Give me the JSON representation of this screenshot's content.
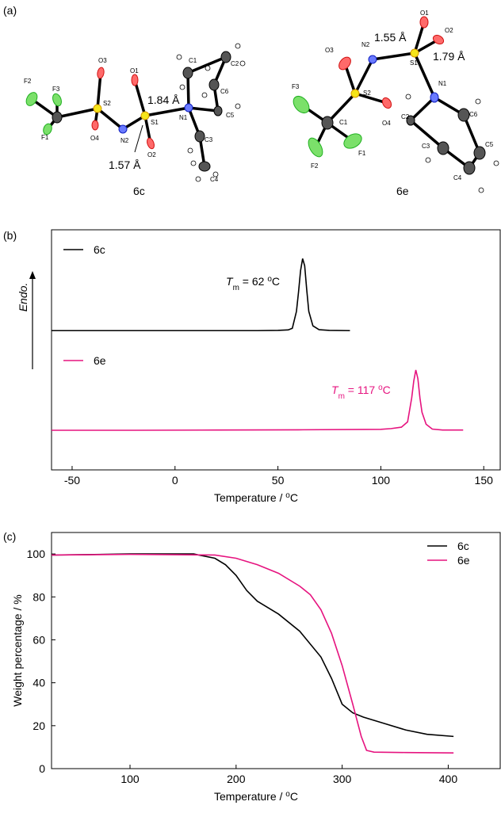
{
  "panel_labels": [
    "(a)",
    "(b)",
    "(c)"
  ],
  "structures": [
    {
      "name": "6c",
      "atoms": [
        "F2",
        "F3",
        "F1",
        "S2",
        "O3",
        "O4",
        "N2",
        "S1",
        "O1",
        "O2",
        "N1",
        "C1",
        "C2",
        "C6",
        "C5",
        "C3",
        "C4"
      ],
      "bond_lengths": [
        "1.84 Å",
        "1.57 Å"
      ]
    },
    {
      "name": "6e",
      "atoms": [
        "O1",
        "O2",
        "N2",
        "S1",
        "O3",
        "S2",
        "N1",
        "F3",
        "C1",
        "O4",
        "C2",
        "C6",
        "C3",
        "C5",
        "F2",
        "F1",
        "C4"
      ],
      "bond_lengths": [
        "1.55 Å",
        "1.79 Å"
      ]
    }
  ],
  "chart_data": [
    {
      "type": "line",
      "xlabel": [
        "Temperature / ",
        "o",
        "C"
      ],
      "ylabel": "Endo.",
      "xlim": [
        -60,
        158
      ],
      "xticks": [
        -50,
        0,
        50,
        100,
        150
      ],
      "ylim": [
        0,
        100
      ],
      "legend": "upper left",
      "series": [
        {
          "name": "6c",
          "color": "#000000",
          "x": [
            -60,
            -40,
            -20,
            0,
            20,
            40,
            50,
            55,
            57,
            59,
            60,
            61,
            62,
            63,
            64,
            65,
            67,
            70,
            75,
            85
          ],
          "values": [
            58,
            58,
            58,
            58,
            58,
            58,
            58.1,
            58.3,
            59,
            66,
            74,
            83,
            88,
            85,
            75,
            66,
            60,
            58.4,
            58.1,
            58
          ]
        },
        {
          "name": "6e",
          "color": "#e6137f",
          "x": [
            -60,
            -20,
            20,
            60,
            100,
            105,
            110,
            113,
            115,
            116,
            117,
            118,
            119,
            120,
            122,
            125,
            130,
            140
          ],
          "values": [
            16.5,
            16.5,
            16.6,
            16.7,
            16.9,
            17.2,
            17.8,
            20,
            30,
            37,
            41.6,
            38,
            30,
            24,
            19,
            17,
            16.6,
            16.6
          ]
        }
      ],
      "annotations": [
        {
          "parts": [
            "T",
            "m",
            " = 62 ",
            "o",
            "C"
          ],
          "color": "#000000"
        },
        {
          "parts": [
            "T",
            "m",
            " = 117 ",
            "o",
            "C"
          ],
          "color": "#e6137f"
        }
      ]
    },
    {
      "type": "line",
      "xlabel": [
        "Temperature / ",
        "o",
        "C"
      ],
      "ylabel": "Weight percentage / %",
      "xlim": [
        26,
        449
      ],
      "xticks": [
        100,
        200,
        300,
        400
      ],
      "ylim": [
        0,
        110
      ],
      "yticks": [
        0,
        20,
        40,
        60,
        80,
        100
      ],
      "legend": "upper right",
      "series": [
        {
          "name": "6c",
          "color": "#000000",
          "x": [
            26,
            60,
            100,
            160,
            180,
            190,
            200,
            210,
            220,
            240,
            260,
            280,
            290,
            300,
            310,
            320,
            340,
            360,
            380,
            405
          ],
          "values": [
            99.5,
            99.7,
            100,
            100,
            98,
            95,
            90,
            83,
            78,
            72,
            64,
            52,
            42,
            30,
            26,
            24,
            21,
            18,
            16,
            15
          ]
        },
        {
          "name": "6e",
          "color": "#e6137f",
          "x": [
            26,
            100,
            180,
            200,
            220,
            240,
            260,
            270,
            280,
            290,
            300,
            310,
            318,
            323,
            330,
            360,
            405
          ],
          "values": [
            99.5,
            99.8,
            99.5,
            98,
            95,
            91,
            85,
            81,
            74,
            63,
            48,
            30,
            15,
            8.5,
            7.7,
            7.5,
            7.3
          ]
        }
      ]
    }
  ]
}
